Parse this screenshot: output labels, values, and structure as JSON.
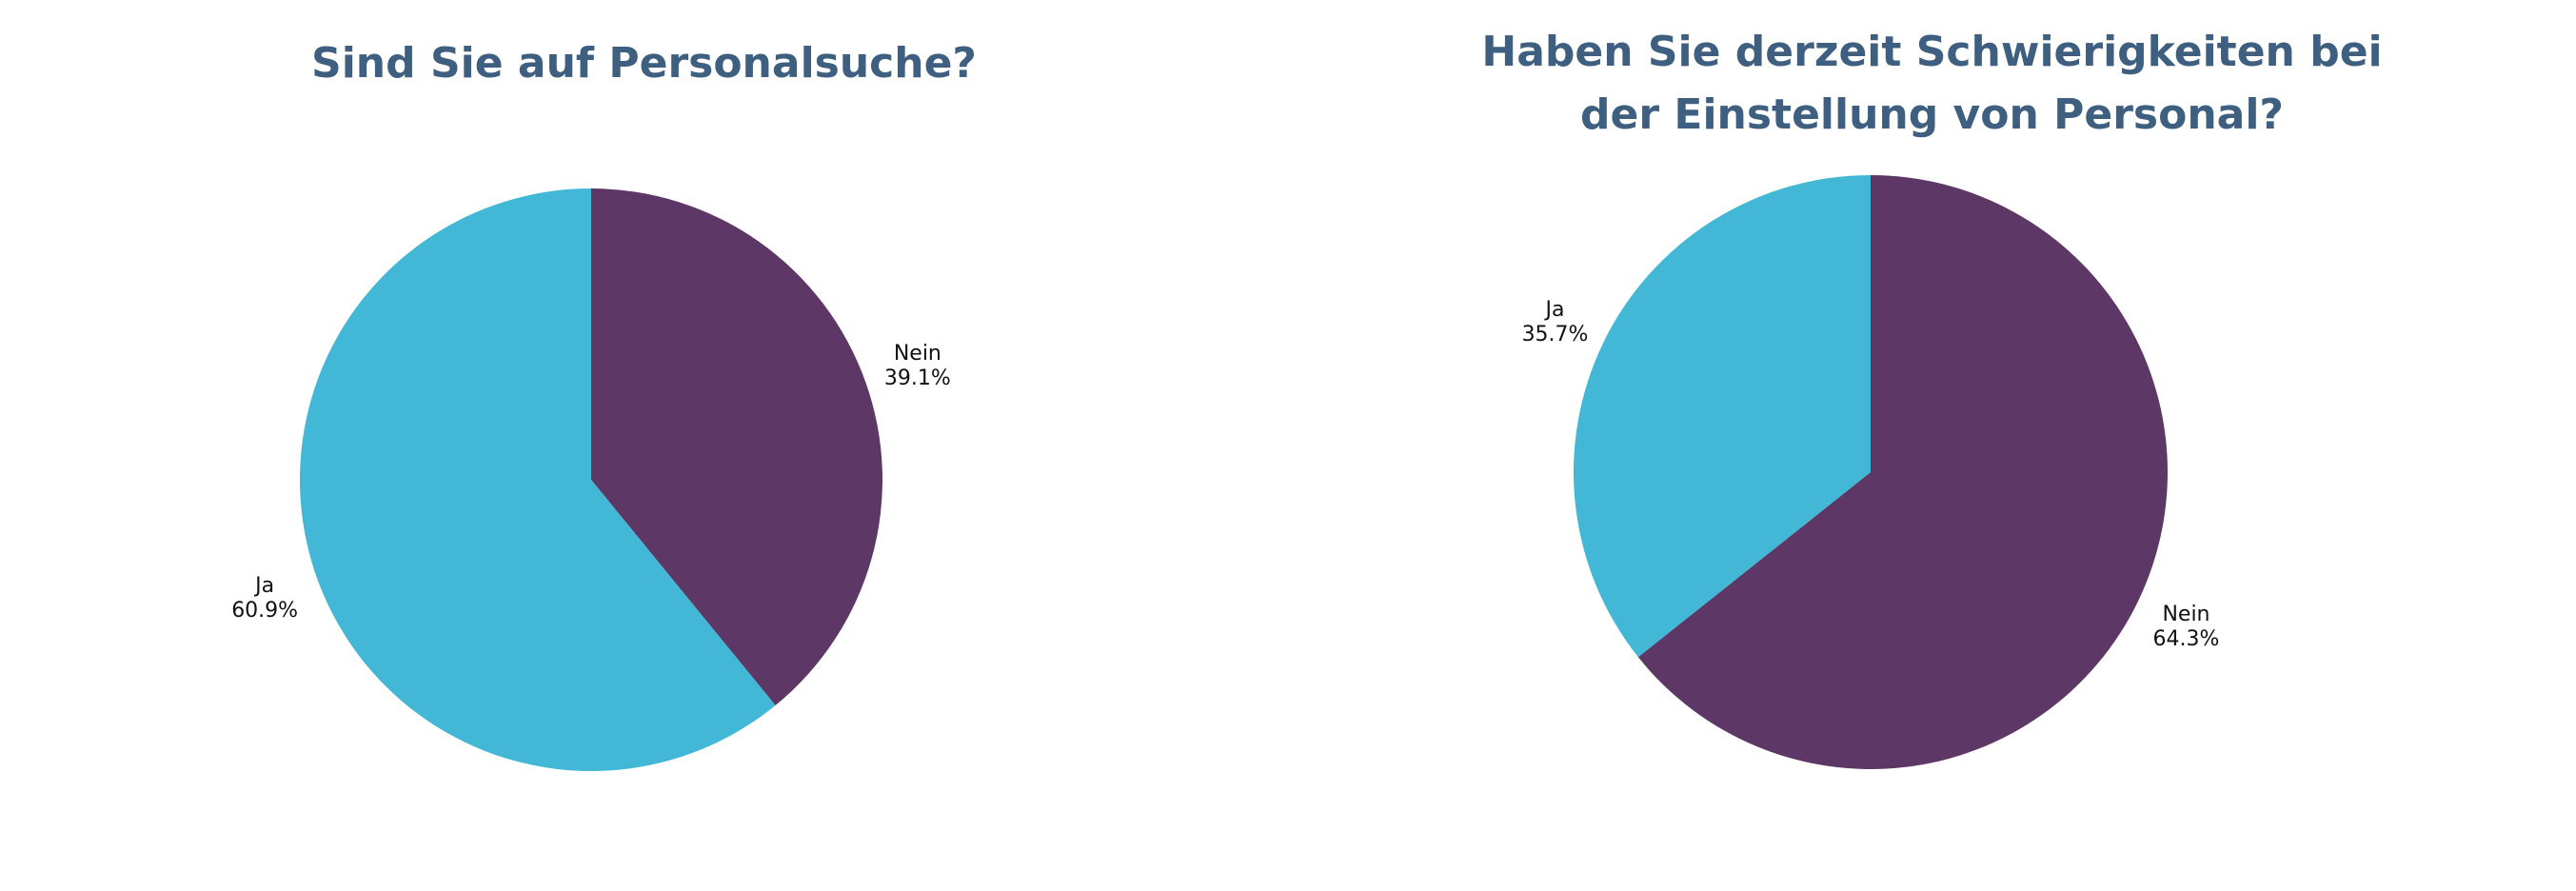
{
  "chart_data": [
    {
      "type": "pie",
      "title": "Sind Sie auf Personalsuche?",
      "slices": [
        {
          "label": "Nein",
          "value": 39.1,
          "value_label": "39.1%",
          "color": "#5d3766"
        },
        {
          "label": "Ja",
          "value": 60.9,
          "value_label": "60.9%",
          "color": "#42b7d6"
        }
      ],
      "start_angle_deg": 0,
      "direction": "clockwise"
    },
    {
      "type": "pie",
      "title_lines": [
        "Haben Sie derzeit Schwierigkeiten bei",
        "der Einstellung von Personal?"
      ],
      "slices": [
        {
          "label": "Nein",
          "value": 64.3,
          "value_label": "64.3%",
          "color": "#5d3766"
        },
        {
          "label": "Ja",
          "value": 35.7,
          "value_label": "35.7%",
          "color": "#42b7d6"
        }
      ],
      "start_angle_deg": 0,
      "direction": "clockwise"
    }
  ]
}
